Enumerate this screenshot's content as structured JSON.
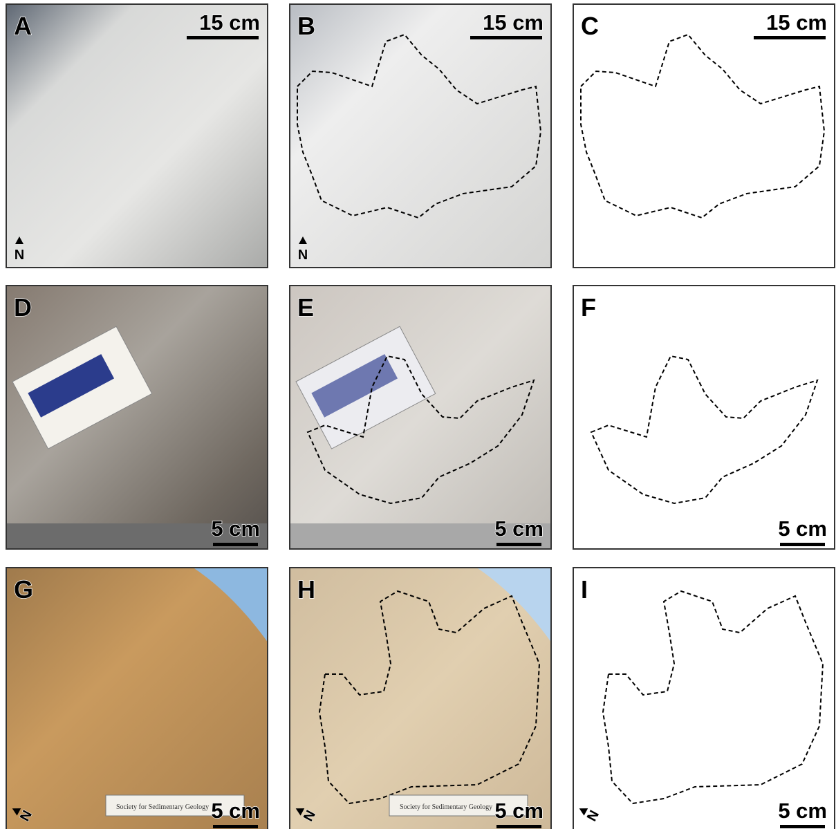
{
  "panels": [
    {
      "label": "A",
      "scale_bar": "15 cm",
      "north": "N"
    },
    {
      "label": "B",
      "scale_bar": "15 cm",
      "north": "N"
    },
    {
      "label": "C",
      "scale_bar": "15 cm"
    },
    {
      "label": "D",
      "scale_bar": "5 cm"
    },
    {
      "label": "E",
      "scale_bar": "5 cm"
    },
    {
      "label": "F",
      "scale_bar": "5 cm"
    },
    {
      "label": "G",
      "scale_bar": "5 cm",
      "north": "N",
      "scale_card": "Society for Sedimentary Geology"
    },
    {
      "label": "H",
      "scale_bar": "5 cm",
      "north": "N",
      "scale_card": "Society for Sedimentary Geology"
    },
    {
      "label": "I",
      "scale_bar": "5 cm",
      "north": "N"
    }
  ]
}
